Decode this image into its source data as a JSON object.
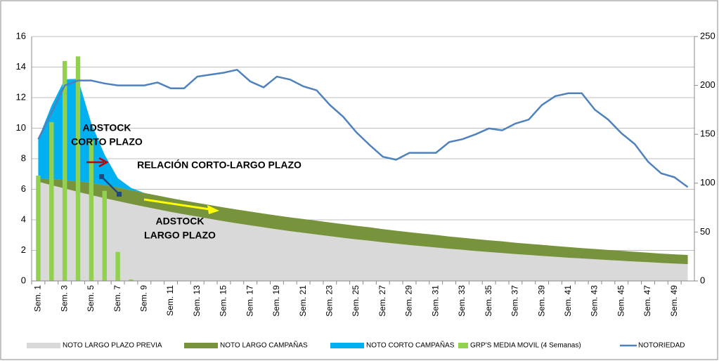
{
  "chart_data": {
    "type": "combo",
    "categories": [
      "Sem. 1",
      null,
      "Sem. 3",
      null,
      "Sem. 5",
      null,
      "Sem. 7",
      null,
      "Sem. 9",
      null,
      "Sem. 11",
      null,
      "Sem. 13",
      null,
      "Sem. 15",
      null,
      "Sem. 17",
      null,
      "Sem. 19",
      null,
      "Sem. 21",
      null,
      "Sem. 23",
      null,
      "Sem. 25",
      null,
      "Sem. 27",
      null,
      "Sem. 29",
      null,
      "Sem. 31",
      null,
      "Sem. 33",
      null,
      "Sem. 35",
      null,
      "Sem. 37",
      null,
      "Sem. 39",
      null,
      "Sem. 41",
      null,
      "Sem. 43",
      null,
      "Sem. 45",
      null,
      "Sem. 47",
      null,
      "Sem. 49",
      null
    ],
    "series": [
      {
        "name": "NOTO LARGO PLAZO PREVIA",
        "type": "area",
        "color": "#d9d9d9",
        "values": [
          6.5,
          6.27,
          6.05,
          5.83,
          5.62,
          5.42,
          5.23,
          5.04,
          4.86,
          4.69,
          4.52,
          4.36,
          4.21,
          4.06,
          3.91,
          3.77,
          3.64,
          3.51,
          3.38,
          3.26,
          3.15,
          3.04,
          2.93,
          2.82,
          2.72,
          2.63,
          2.53,
          2.44,
          2.35,
          2.27,
          2.19,
          2.11,
          2.04,
          1.96,
          1.89,
          1.83,
          1.76,
          1.7,
          1.64,
          1.58,
          1.52,
          1.47,
          1.42,
          1.37,
          1.32,
          1.27,
          1.23,
          1.18,
          1.14,
          1.1
        ]
      },
      {
        "name": "NOTO LARGO CAMPAÑAS",
        "type": "area",
        "color": "#77933c",
        "values": [
          0.2,
          0.4,
          0.55,
          0.7,
          0.8,
          0.85,
          0.9,
          0.9,
          0.9,
          0.9,
          0.9,
          0.9,
          0.9,
          0.9,
          0.9,
          0.9,
          0.9,
          0.9,
          0.9,
          0.9,
          0.9,
          0.9,
          0.9,
          0.9,
          0.89,
          0.88,
          0.86,
          0.85,
          0.84,
          0.83,
          0.82,
          0.8,
          0.79,
          0.78,
          0.77,
          0.76,
          0.74,
          0.73,
          0.72,
          0.71,
          0.7,
          0.68,
          0.67,
          0.66,
          0.65,
          0.64,
          0.62,
          0.61,
          0.6,
          0.6
        ]
      },
      {
        "name": "NOTO CORTO CAMPAÑAS",
        "type": "area",
        "color": "#00b0f0",
        "values": [
          2.6,
          4.8,
          6.6,
          6.7,
          3.9,
          2.0,
          0.6,
          0.15,
          0,
          0,
          0,
          0,
          0,
          0,
          0,
          0,
          0,
          0,
          0,
          0,
          0,
          0,
          0,
          0,
          0,
          0,
          0,
          0,
          0,
          0,
          0,
          0,
          0,
          0,
          0,
          0,
          0,
          0,
          0,
          0,
          0,
          0,
          0,
          0,
          0,
          0,
          0,
          0,
          0,
          0
        ]
      },
      {
        "name": "GRP'S MEDIA MOVIL (4 Semanas)",
        "type": "bar",
        "color": "#92d050",
        "values": [
          6.9,
          10.4,
          14.4,
          14.7,
          9.2,
          5.9,
          1.9,
          0.1,
          0,
          0,
          0,
          0,
          0,
          0,
          0,
          0,
          0,
          0,
          0,
          0,
          0,
          0,
          0,
          0,
          0,
          0,
          0,
          0,
          0,
          0,
          0,
          0,
          0,
          0,
          0,
          0,
          0,
          0,
          0,
          0,
          0,
          0,
          0,
          0,
          0,
          0,
          0,
          0,
          0,
          0
        ]
      },
      {
        "name": "NOTORIEDAD",
        "type": "line",
        "axis": "y2",
        "color": "#4f81bd",
        "values": [
          145,
          172,
          200,
          205,
          205,
          202,
          200,
          200,
          200,
          203,
          197,
          197,
          209,
          211,
          213,
          216,
          204,
          198,
          209,
          206,
          199,
          195,
          180,
          168,
          152,
          139,
          127,
          124,
          131,
          131,
          131,
          142,
          145,
          150,
          156,
          154,
          161,
          165,
          180,
          189,
          192,
          192,
          175,
          165,
          151,
          140,
          122,
          110,
          106,
          96
        ]
      }
    ],
    "ylim": [
      0,
      16
    ],
    "yticks": [
      0,
      2,
      4,
      6,
      8,
      10,
      12,
      14,
      16
    ],
    "y2lim": [
      0,
      250
    ],
    "y2ticks": [
      0,
      50,
      100,
      150,
      200,
      250
    ],
    "grid": true,
    "legend": "bottom",
    "annotations": [
      {
        "lines": [
          "ADSTOCK",
          "CORTO PLAZO"
        ],
        "color": "#c00000"
      },
      {
        "lines": [
          "RELACIÓN CORTO-LARGO PLAZO"
        ],
        "color": "#1f497d"
      },
      {
        "lines": [
          "ADSTOCK",
          "LARGO PLAZO"
        ],
        "color": "#000000"
      }
    ]
  }
}
